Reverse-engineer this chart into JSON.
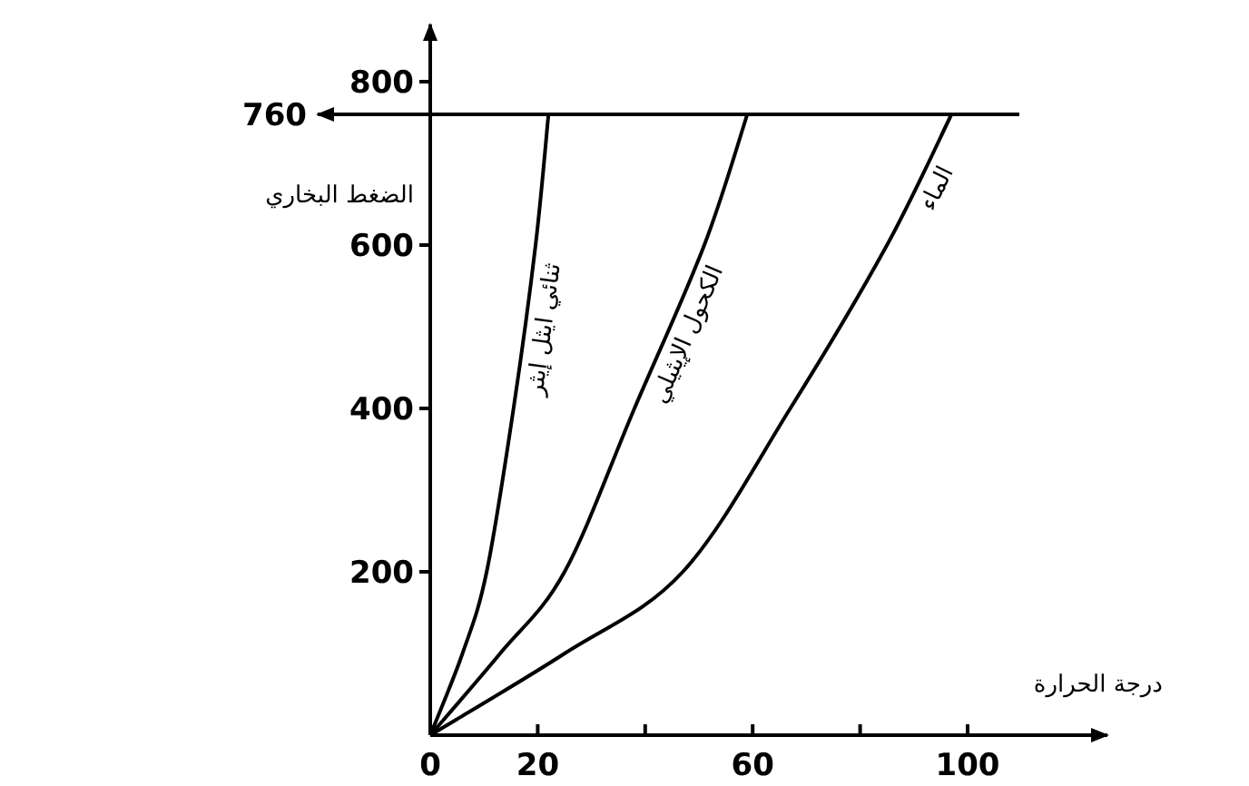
{
  "chart_data": {
    "type": "line",
    "xlabel": "درجة الحرارة",
    "ylabel": "الضغط البخاري",
    "xlim": [
      0,
      126
    ],
    "ylim": [
      0,
      870
    ],
    "xticks": [
      0,
      20,
      {
        "value": 40,
        "label": null
      },
      60,
      {
        "value": 80,
        "label": null
      },
      100
    ],
    "yticks": [
      200,
      400,
      600,
      800
    ],
    "series": [
      {
        "name": "ثنائي ايثل إيثر",
        "color": "#000000",
        "x": [
          0,
          6,
          10.5,
          15.5,
          19.6,
          22
        ],
        "values": [
          0,
          100,
          200,
          400,
          600,
          760
        ]
      },
      {
        "name": "الكحول الإيثيلي",
        "color": "#000000",
        "x": [
          0,
          13,
          25,
          38,
          51,
          59
        ],
        "values": [
          0,
          100,
          200,
          400,
          600,
          760
        ]
      },
      {
        "name": "الماء",
        "color": "#000000",
        "x": [
          0,
          25,
          47,
          67,
          85,
          97
        ],
        "values": [
          0,
          100,
          200,
          400,
          600,
          760
        ]
      }
    ],
    "ref_lines": [
      {
        "axis": "y",
        "value": 760,
        "label": "760"
      }
    ]
  }
}
